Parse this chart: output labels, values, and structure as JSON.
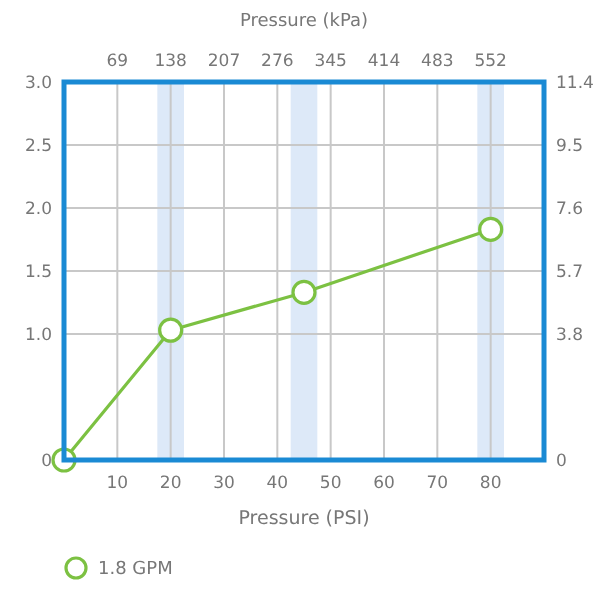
{
  "chart_data": {
    "type": "line",
    "xlabel": "Pressure (PSI)",
    "x2label": "Pressure (kPa)",
    "xlim": [
      0,
      90
    ],
    "xticks": [
      10,
      20,
      30,
      40,
      50,
      60,
      70,
      80
    ],
    "x2lim": [
      0,
      621
    ],
    "x2ticks": [
      69,
      138,
      207,
      276,
      345,
      414,
      483,
      552
    ],
    "ylim": [
      0,
      3
    ],
    "yticks": [
      0,
      {
        "value": 1,
        "label": "1.0"
      },
      1.5,
      {
        "value": 2,
        "label": "2.0"
      },
      2.5,
      {
        "value": 3,
        "label": "3.0"
      }
    ],
    "y2lim": [
      0,
      11.4
    ],
    "y2ticks": [
      0,
      3.8,
      5.7,
      7.6,
      9.5,
      11.4
    ],
    "grid": true,
    "legend": "bottom",
    "marker": "circle",
    "bands": [
      {
        "axis": "x",
        "from": 17.5,
        "to": 22.5,
        "color": "#dde9f8"
      },
      {
        "axis": "x",
        "from": 42.5,
        "to": 47.5,
        "color": "#dde9f8"
      },
      {
        "axis": "x",
        "from": 77.5,
        "to": 82.5,
        "color": "#dde9f8"
      }
    ],
    "series": [
      {
        "name": "1.8 GPM",
        "color": "#7cc142",
        "x": [
          0,
          20,
          45,
          80
        ],
        "values": [
          0,
          1.03,
          1.33,
          1.83
        ]
      }
    ]
  }
}
